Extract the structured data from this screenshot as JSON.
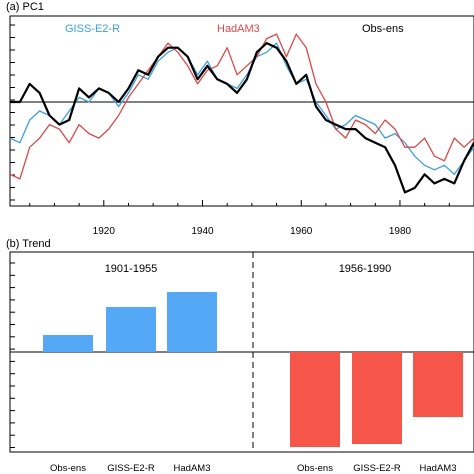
{
  "colors": {
    "giss": "#3aa0dc",
    "hadam3": "#d94848",
    "obs": "#000000",
    "bar_early": "#55a8f5",
    "bar_late": "#f6564a"
  },
  "chart_data": [
    {
      "type": "line",
      "panel_title": "(a) PC1",
      "x_ticks": [
        1920,
        1940,
        1960,
        1980
      ],
      "xlim": [
        1901,
        1995
      ],
      "ylim": [
        -2.3,
        1.9
      ],
      "zero_line": true,
      "legend": [
        "GISS-E2-R",
        "HadAM3",
        "Obs-ens"
      ],
      "x": [
        1901,
        1903,
        1905,
        1907,
        1909,
        1911,
        1913,
        1915,
        1917,
        1919,
        1921,
        1923,
        1925,
        1927,
        1929,
        1931,
        1933,
        1935,
        1937,
        1939,
        1941,
        1943,
        1945,
        1947,
        1949,
        1951,
        1953,
        1955,
        1957,
        1959,
        1961,
        1963,
        1965,
        1967,
        1969,
        1971,
        1973,
        1975,
        1977,
        1979,
        1981,
        1983,
        1985,
        1987,
        1989,
        1991,
        1993,
        1995
      ],
      "series": [
        {
          "name": "Obs-ens",
          "values": [
            0.0,
            0.0,
            0.4,
            0.2,
            -0.3,
            -0.5,
            -0.4,
            0.3,
            0.1,
            0.3,
            0.2,
            0.0,
            0.3,
            0.7,
            0.6,
            1.0,
            1.2,
            1.2,
            1.0,
            0.5,
            0.8,
            0.5,
            0.4,
            0.2,
            0.5,
            1.1,
            1.3,
            1.2,
            0.9,
            0.4,
            0.6,
            -0.1,
            -0.4,
            -0.5,
            -0.6,
            -0.6,
            -0.8,
            -0.9,
            -1.0,
            -1.4,
            -2.0,
            -1.9,
            -1.6,
            -1.8,
            -1.7,
            -1.8,
            -1.3,
            -0.9
          ]
        },
        {
          "name": "GISS-E2-R",
          "values": [
            -0.8,
            -0.9,
            -0.4,
            -0.2,
            -0.3,
            -0.5,
            -0.2,
            0.1,
            0.0,
            0.3,
            0.2,
            -0.1,
            0.2,
            0.6,
            0.5,
            0.9,
            1.1,
            1.2,
            1.0,
            0.6,
            0.9,
            0.5,
            0.4,
            0.3,
            0.6,
            1.0,
            1.1,
            1.3,
            0.8,
            0.4,
            0.5,
            0.0,
            -0.3,
            -0.6,
            -0.5,
            -0.3,
            -0.4,
            -0.5,
            -0.8,
            -0.7,
            -0.9,
            -1.2,
            -1.4,
            -1.5,
            -1.4,
            -1.6,
            -1.3,
            -1.0
          ]
        },
        {
          "name": "HadAM3",
          "values": [
            -1.6,
            -1.7,
            -1.0,
            -0.8,
            -0.5,
            -0.6,
            -0.9,
            -0.5,
            -0.7,
            -0.8,
            -0.6,
            -0.3,
            0.1,
            0.4,
            0.7,
            1.0,
            1.3,
            1.1,
            0.8,
            0.4,
            0.7,
            0.8,
            1.2,
            0.6,
            0.8,
            1.0,
            1.4,
            1.5,
            1.0,
            1.5,
            1.2,
            0.4,
            0.0,
            -0.6,
            -0.8,
            -0.4,
            -0.5,
            -0.7,
            -0.4,
            -0.6,
            -1.0,
            -1.0,
            -0.8,
            -1.2,
            -1.3,
            -0.8,
            -1.0,
            -0.8
          ]
        }
      ]
    },
    {
      "type": "bar",
      "panel_title": "(b) Trend",
      "ylim": [
        -1.0,
        1.0
      ],
      "zero_line": true,
      "groups": [
        {
          "label": "1901-1955",
          "categories": [
            "Obs-ens",
            "GISS-E2-R",
            "HadAM3"
          ],
          "values": [
            0.17,
            0.45,
            0.6
          ]
        },
        {
          "label": "1956-1990",
          "categories": [
            "Obs-ens",
            "GISS-E2-R",
            "HadAM3"
          ],
          "values": [
            -0.95,
            -0.92,
            -0.65
          ]
        }
      ]
    }
  ]
}
